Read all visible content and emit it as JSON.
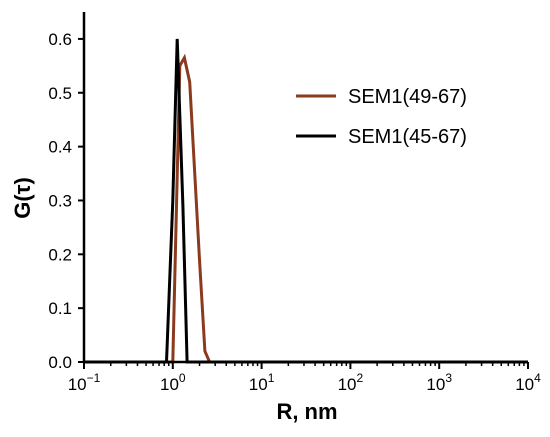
{
  "chart_data": {
    "type": "line",
    "title": "",
    "xlabel": "R, nm",
    "ylabel": "G(τ)",
    "x_scale": "log",
    "xlim": [
      0.1,
      10000
    ],
    "ylim": [
      0.0,
      0.65
    ],
    "x_ticks": [
      {
        "value": 0.1,
        "base": "10",
        "exp": "−1"
      },
      {
        "value": 1,
        "base": "10",
        "exp": "0"
      },
      {
        "value": 10,
        "base": "10",
        "exp": "1"
      },
      {
        "value": 100,
        "base": "10",
        "exp": "2"
      },
      {
        "value": 1000,
        "base": "10",
        "exp": "3"
      },
      {
        "value": 10000,
        "base": "10",
        "exp": "4"
      }
    ],
    "y_ticks": [
      "0.0",
      "0.1",
      "0.2",
      "0.3",
      "0.4",
      "0.5",
      "0.6"
    ],
    "legend_position": "top-right",
    "grid": false,
    "series": [
      {
        "name": "SEM1(49-67)",
        "color": "#8B3A1E",
        "x": [
          0.1,
          0.85,
          1.0,
          1.1,
          1.2,
          1.35,
          1.55,
          2.0,
          2.3,
          2.6,
          3.2,
          10000
        ],
        "y": [
          0.0,
          0.0,
          0.0,
          0.29,
          0.55,
          0.565,
          0.52,
          0.19,
          0.02,
          0.0,
          0.0,
          0.0
        ]
      },
      {
        "name": "SEM1(45-67)",
        "color": "#000000",
        "x": [
          0.1,
          0.85,
          1.0,
          1.12,
          1.3,
          1.45,
          10000
        ],
        "y": [
          0.0,
          0.0,
          0.3,
          0.6,
          0.29,
          0.0,
          0.0
        ]
      }
    ]
  }
}
